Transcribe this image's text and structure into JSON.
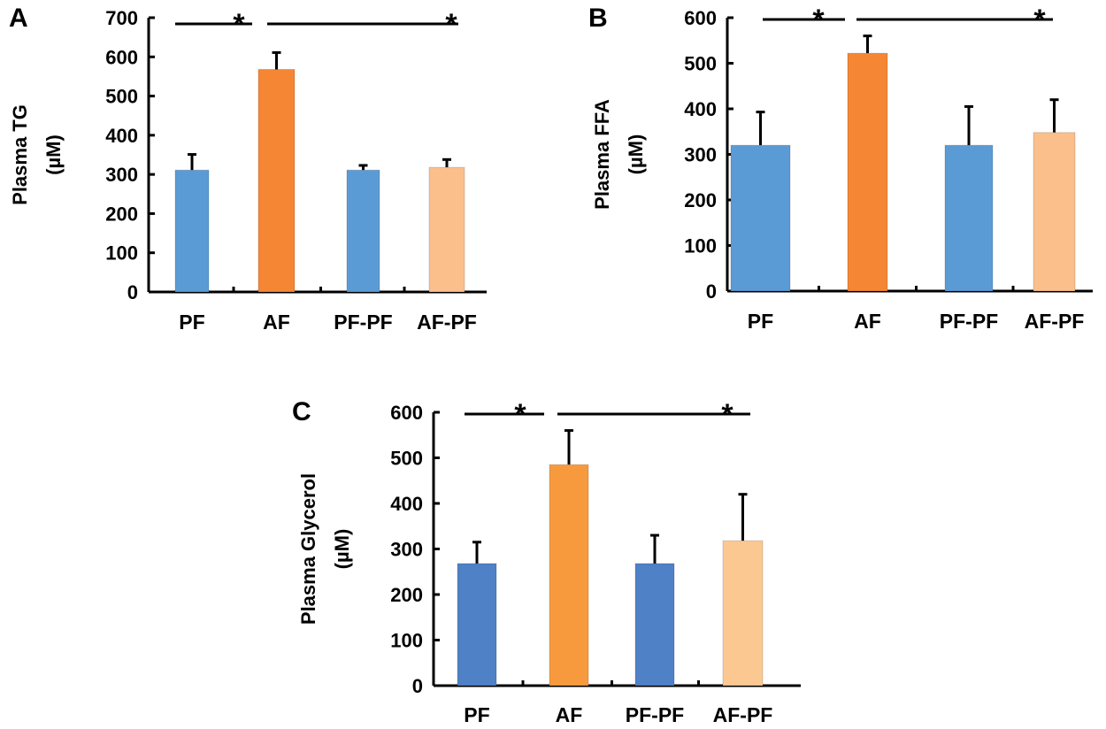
{
  "chart_data": [
    {
      "panel": "A",
      "type": "bar",
      "ylabel_line1": "Plasma  TG",
      "ylabel_line2": "(µM)",
      "ylim": [
        0,
        700
      ],
      "yticks": [
        "0",
        "100",
        "200",
        "300",
        "400",
        "500",
        "600",
        "700"
      ],
      "categories": [
        "PF",
        "AF",
        "PF-PF",
        "AF-PF"
      ],
      "values": [
        311,
        568,
        311,
        318
      ],
      "errors": [
        40,
        43,
        12,
        20
      ],
      "colors": [
        "#5b9bd5",
        "#f58634",
        "#5b9bd5",
        "#fbbf8c"
      ],
      "significance": [
        "*",
        "*"
      ]
    },
    {
      "panel": "B",
      "type": "bar",
      "ylabel_line1": "Plasma  FFA",
      "ylabel_line2": "(µM)",
      "ylim": [
        0,
        600
      ],
      "yticks": [
        "0",
        "100",
        "200",
        "300",
        "400",
        "500",
        "600"
      ],
      "categories": [
        "PF",
        "AF",
        "PF-PF",
        "AF-PF"
      ],
      "values": [
        320,
        522,
        320,
        348
      ],
      "errors": [
        73,
        38,
        85,
        72
      ],
      "colors": [
        "#5b9bd5",
        "#f58634",
        "#5b9bd5",
        "#fbbf8c"
      ],
      "significance": [
        "*",
        "*"
      ]
    },
    {
      "panel": "C",
      "type": "bar",
      "ylabel_line1": "Plasma  Glycerol",
      "ylabel_line2": "(µM)",
      "ylim": [
        0,
        600
      ],
      "yticks": [
        "0",
        "100",
        "200",
        "300",
        "400",
        "500",
        "600"
      ],
      "categories": [
        "PF",
        "AF",
        "PF-PF",
        "AF-PF"
      ],
      "values": [
        268,
        485,
        268,
        318
      ],
      "errors": [
        47,
        75,
        62,
        102
      ],
      "colors": [
        "#4f81c7",
        "#f79a3e",
        "#4f81c7",
        "#fcc892"
      ],
      "significance": [
        "*",
        "*"
      ]
    }
  ]
}
